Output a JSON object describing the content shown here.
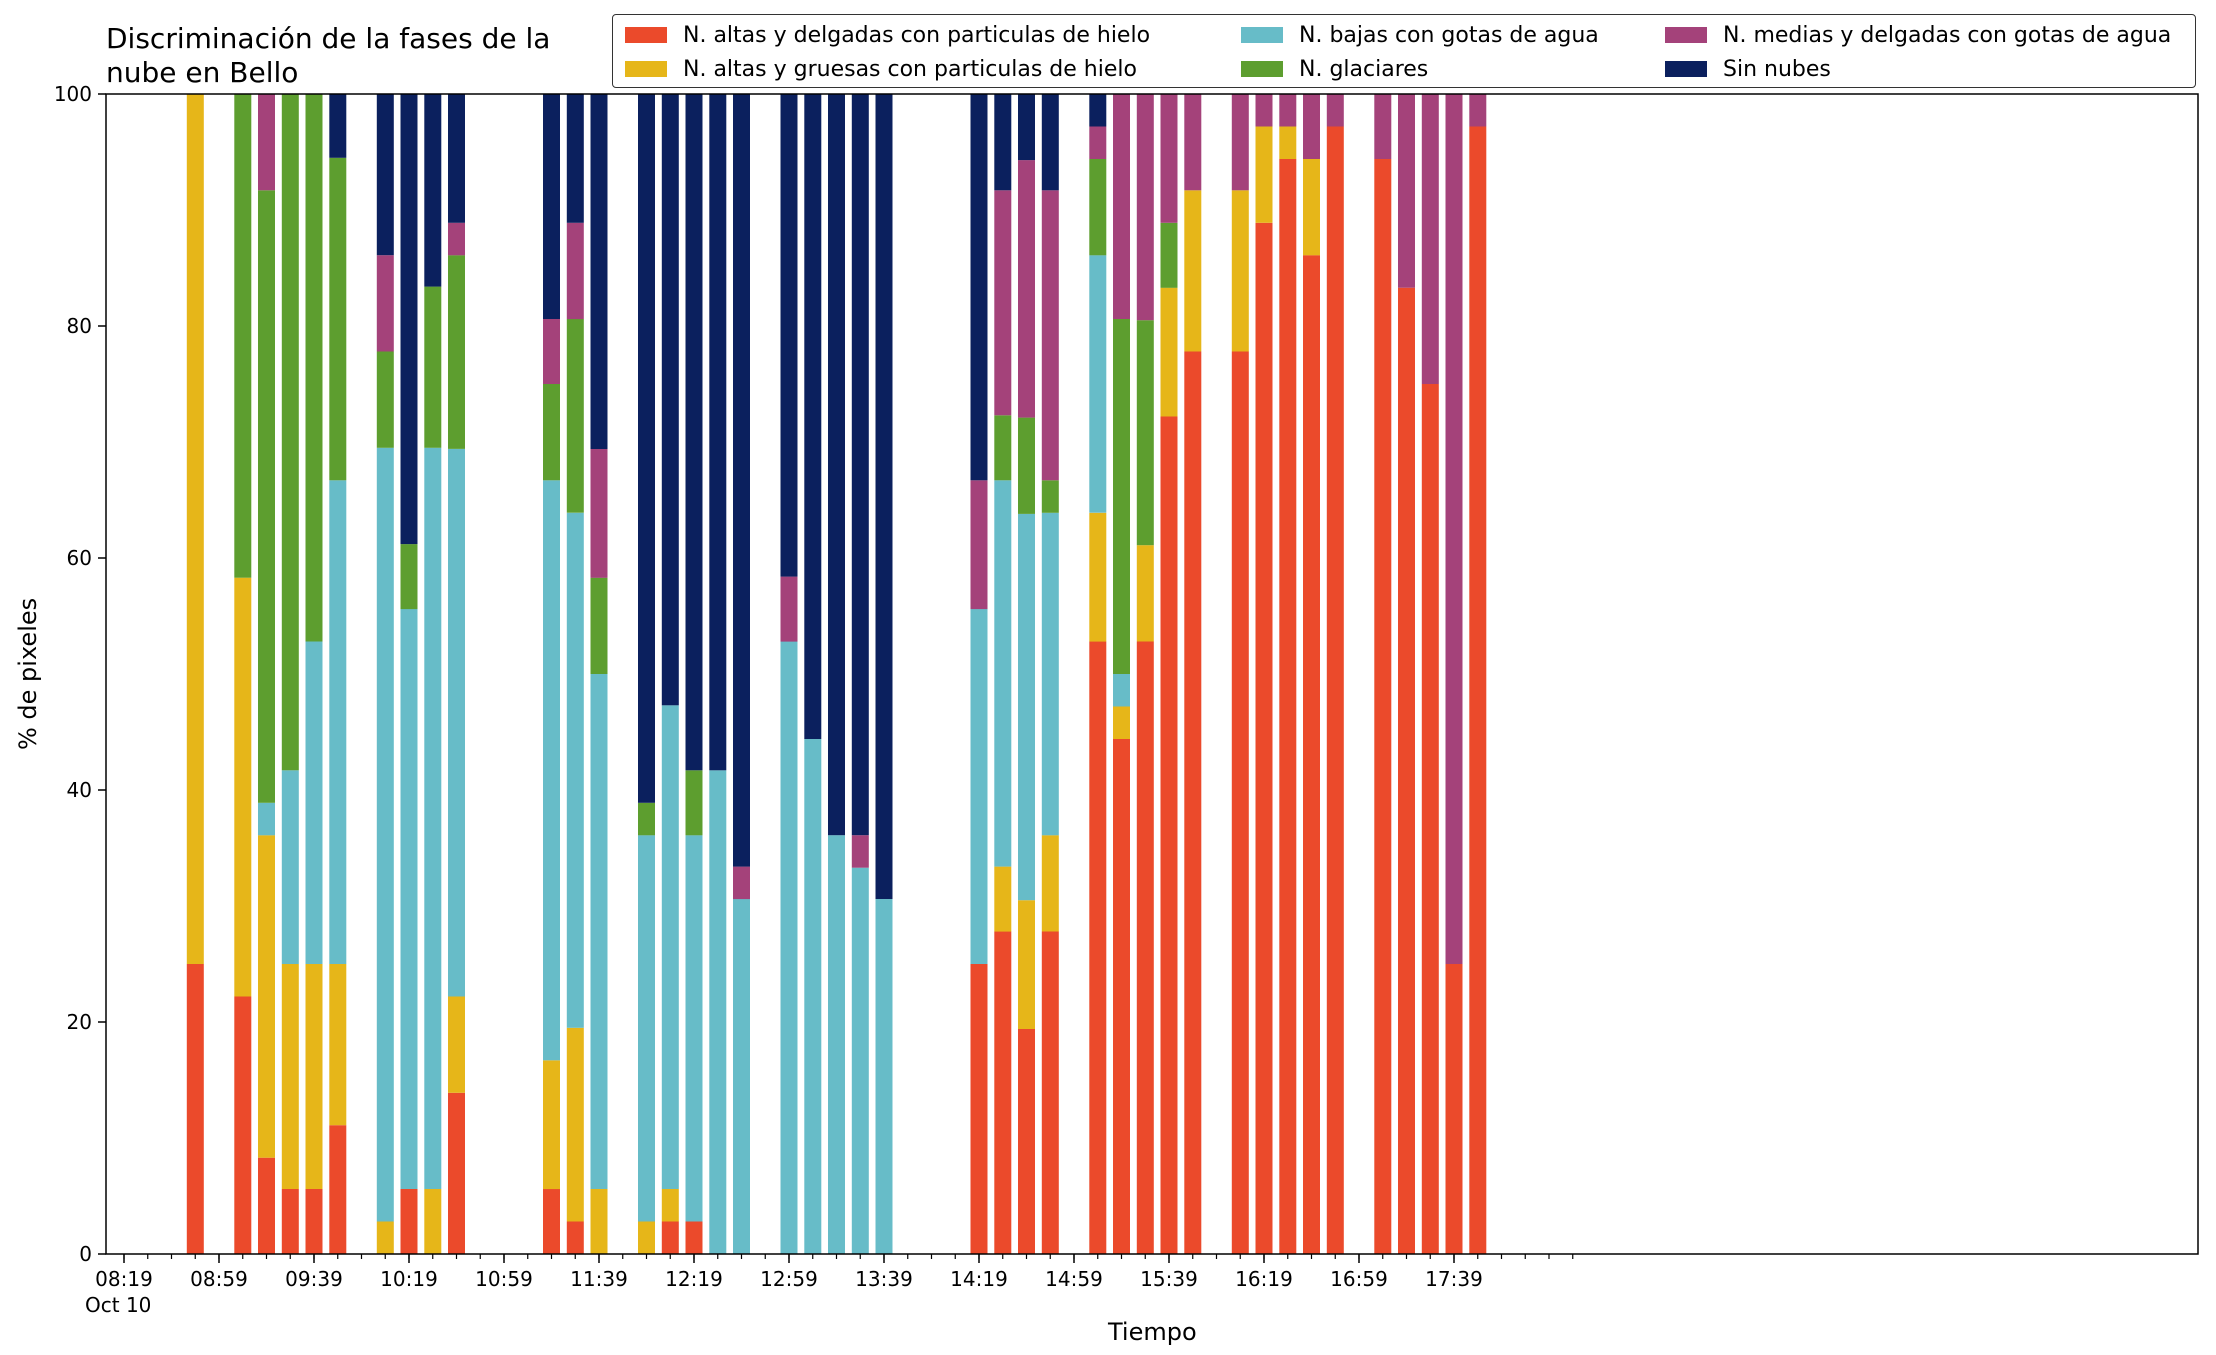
{
  "chart_data": {
    "type": "bar",
    "stacked": true,
    "title": "Discriminación de la fases de la\nnube en Bello",
    "xlabel": "Tiempo",
    "ylabel": "% de pixeles",
    "ylim": [
      0,
      100
    ],
    "yticks": [
      0,
      20,
      40,
      60,
      80,
      100
    ],
    "xticks": [
      "08:19\nOct 10",
      "08:59",
      "09:39",
      "10:19",
      "10:59",
      "11:39",
      "12:19",
      "12:59",
      "13:39",
      "14:19",
      "14:59",
      "15:39",
      "16:19",
      "16:59",
      "17:39"
    ],
    "legend_position": "top-right",
    "series": [
      {
        "name": "N. altas y delgadas con particulas de hielo",
        "color": "#EB4A2B"
      },
      {
        "name": "N. altas y gruesas con particulas de hielo",
        "color": "#E6B619"
      },
      {
        "name": "N. bajas con gotas de agua",
        "color": "#67BCC8"
      },
      {
        "name": "N. glaciares",
        "color": "#5D9E2F"
      },
      {
        "name": "N. medias y delgadas con gotas de agua",
        "color": "#A4427A"
      },
      {
        "name": "Sin nubes",
        "color": "#0B205E"
      }
    ],
    "bars": [
      {
        "time": "08:49",
        "values": [
          25,
          75,
          0,
          0,
          0,
          0
        ]
      },
      {
        "time": "09:09",
        "values": [
          22.2,
          36.1,
          0,
          41.7,
          0,
          0
        ]
      },
      {
        "time": "09:19",
        "values": [
          8.3,
          27.8,
          2.8,
          52.8,
          8.3,
          0
        ]
      },
      {
        "time": "09:29",
        "values": [
          5.6,
          19.4,
          16.7,
          58.3,
          0,
          0
        ]
      },
      {
        "time": "09:39",
        "values": [
          5.6,
          19.4,
          27.8,
          47.2,
          0,
          0
        ]
      },
      {
        "time": "09:49",
        "values": [
          11.1,
          13.9,
          41.7,
          27.8,
          0,
          5.5
        ]
      },
      {
        "time": "10:09",
        "values": [
          0,
          2.8,
          66.7,
          8.3,
          8.3,
          13.9
        ]
      },
      {
        "time": "10:19",
        "values": [
          5.6,
          0,
          50,
          5.6,
          0,
          38.8
        ]
      },
      {
        "time": "10:29",
        "values": [
          0,
          5.6,
          63.9,
          13.9,
          0,
          16.6
        ]
      },
      {
        "time": "10:39",
        "values": [
          13.9,
          8.3,
          47.2,
          16.7,
          2.8,
          11.1
        ]
      },
      {
        "time": "11:19",
        "values": [
          5.6,
          11.1,
          50,
          8.3,
          5.6,
          19.4
        ]
      },
      {
        "time": "11:29",
        "values": [
          2.8,
          16.7,
          44.4,
          16.7,
          8.3,
          11.1
        ]
      },
      {
        "time": "11:39",
        "values": [
          0,
          5.6,
          44.4,
          8.3,
          11.1,
          30.6
        ]
      },
      {
        "time": "11:59",
        "values": [
          0,
          2.8,
          33.3,
          2.8,
          0,
          61.1
        ]
      },
      {
        "time": "12:09",
        "values": [
          2.8,
          2.8,
          41.7,
          0,
          0,
          52.7
        ]
      },
      {
        "time": "12:19",
        "values": [
          2.8,
          0,
          33.3,
          5.6,
          0,
          58.3
        ]
      },
      {
        "time": "12:29",
        "values": [
          0,
          0,
          41.7,
          0,
          0,
          58.3
        ]
      },
      {
        "time": "12:39",
        "values": [
          0,
          0,
          30.6,
          0,
          2.8,
          66.6
        ]
      },
      {
        "time": "12:59",
        "values": [
          0,
          0,
          52.8,
          0,
          5.6,
          41.6
        ]
      },
      {
        "time": "13:09",
        "values": [
          0,
          0,
          44.4,
          0,
          0,
          55.6
        ]
      },
      {
        "time": "13:19",
        "values": [
          0,
          0,
          36.1,
          0,
          0,
          63.9
        ]
      },
      {
        "time": "13:29",
        "values": [
          0,
          0,
          33.3,
          0,
          2.8,
          63.9
        ]
      },
      {
        "time": "13:39",
        "values": [
          0,
          0,
          30.6,
          0,
          0,
          69.4
        ]
      },
      {
        "time": "14:19",
        "values": [
          25,
          0,
          30.6,
          0,
          11.1,
          33.3
        ]
      },
      {
        "time": "14:29",
        "values": [
          27.8,
          5.6,
          33.3,
          5.6,
          19.4,
          8.3
        ]
      },
      {
        "time": "14:39",
        "values": [
          19.4,
          11.1,
          33.3,
          8.3,
          22.2,
          5.7
        ]
      },
      {
        "time": "14:49",
        "values": [
          27.8,
          8.3,
          27.8,
          2.8,
          25,
          8.3
        ]
      },
      {
        "time": "15:09",
        "values": [
          52.8,
          11.1,
          22.2,
          8.3,
          2.8,
          2.8
        ]
      },
      {
        "time": "15:19",
        "values": [
          44.4,
          2.8,
          2.8,
          30.6,
          19.4,
          0
        ]
      },
      {
        "time": "15:29",
        "values": [
          52.8,
          8.3,
          0,
          19.4,
          19.5,
          0
        ]
      },
      {
        "time": "15:39",
        "values": [
          72.2,
          11.1,
          0,
          5.6,
          11.1,
          0
        ]
      },
      {
        "time": "15:49",
        "values": [
          77.8,
          13.9,
          0,
          0,
          8.3,
          0
        ]
      },
      {
        "time": "16:09",
        "values": [
          77.8,
          13.9,
          0,
          0,
          8.3,
          0
        ]
      },
      {
        "time": "16:19",
        "values": [
          88.9,
          8.3,
          0,
          0,
          2.8,
          0
        ]
      },
      {
        "time": "16:29",
        "values": [
          94.4,
          2.8,
          0,
          0,
          2.8,
          0
        ]
      },
      {
        "time": "16:39",
        "values": [
          86.1,
          8.3,
          0,
          0,
          5.6,
          0
        ]
      },
      {
        "time": "16:49",
        "values": [
          97.2,
          0,
          0,
          0,
          2.8,
          0
        ]
      },
      {
        "time": "17:09",
        "values": [
          94.4,
          0,
          0,
          0,
          5.6,
          0
        ]
      },
      {
        "time": "17:19",
        "values": [
          83.3,
          0,
          0,
          0,
          16.7,
          0
        ]
      },
      {
        "time": "17:29",
        "values": [
          75,
          0,
          0,
          0,
          25,
          0
        ]
      },
      {
        "time": "17:39",
        "values": [
          25,
          0,
          0,
          0,
          75,
          0
        ]
      },
      {
        "time": "17:49",
        "values": [
          97.2,
          0,
          0,
          0,
          2.8,
          0
        ]
      }
    ]
  }
}
